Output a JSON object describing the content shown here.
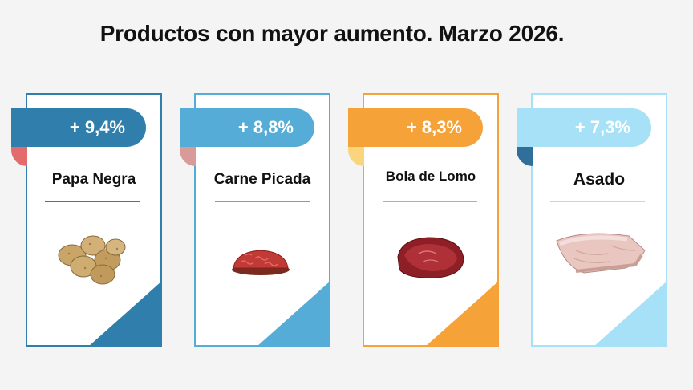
{
  "header": {
    "title": "Productos con mayor aumento. Marzo 2026."
  },
  "products": [
    {
      "change": "+ 9,4%",
      "name": "Papa Negra",
      "color": "#2f7eab",
      "fold_color": "#e46b6b",
      "icon": "potatoes-image"
    },
    {
      "change": "+ 8,8%",
      "name": "Carne Picada",
      "color": "#55acd6",
      "fold_color": "#d99a9a",
      "icon": "ground-meat-image"
    },
    {
      "change": "+ 8,3%",
      "name": "Bola de Lomo",
      "color": "#f5a338",
      "fold_color": "#fbd57d",
      "icon": "beef-roast-image"
    },
    {
      "change": "+ 7,3%",
      "name": "Asado",
      "color": "#a7e1f8",
      "fold_color": "#2f6f99",
      "icon": "ribs-image"
    }
  ]
}
